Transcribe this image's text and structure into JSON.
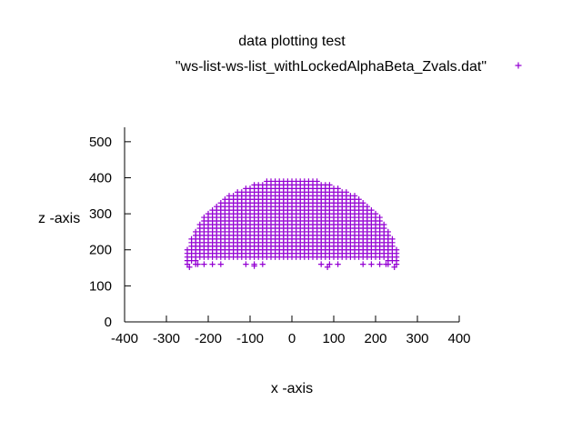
{
  "chart_data": {
    "type": "scatter",
    "title": "data plotting test",
    "xlabel": "x -axis",
    "ylabel": "z -axis",
    "xlim": [
      -400,
      400
    ],
    "ylim": [
      0,
      540
    ],
    "xticks": [
      -400,
      -300,
      -200,
      -100,
      0,
      100,
      200,
      300,
      400
    ],
    "yticks": [
      0,
      100,
      200,
      300,
      400,
      500
    ],
    "xtick_labels": [
      "-400",
      "-300",
      "-200",
      "-100",
      "0",
      "100",
      "200",
      "300",
      "400"
    ],
    "ytick_labels": [
      "0",
      "100",
      "200",
      "300",
      "400",
      "500"
    ],
    "grid": false,
    "legend_position": "top-right",
    "series": [
      {
        "name": "\"ws-list-ws-list_withLockedAlphaBeta_Zvals.dat\"",
        "marker": "plus",
        "color": "#9400d3",
        "point_rule": "dense grid of points filling a half-disc of radius ~260 centred at (0, 140), x step 10, z step 10, upper boundary z ≈ 140 + sqrt(260² − x²), top near z ≈ 400, sparse scattered points near the base (z 150–200)",
        "extra_points": [
          {
            "x": 85,
            "y": 152
          },
          {
            "x": -245,
            "y": 152
          },
          {
            "x": -225,
            "y": 160
          },
          {
            "x": -90,
            "y": 155
          },
          {
            "x": 245,
            "y": 152
          },
          {
            "x": 225,
            "y": 160
          }
        ]
      }
    ]
  }
}
